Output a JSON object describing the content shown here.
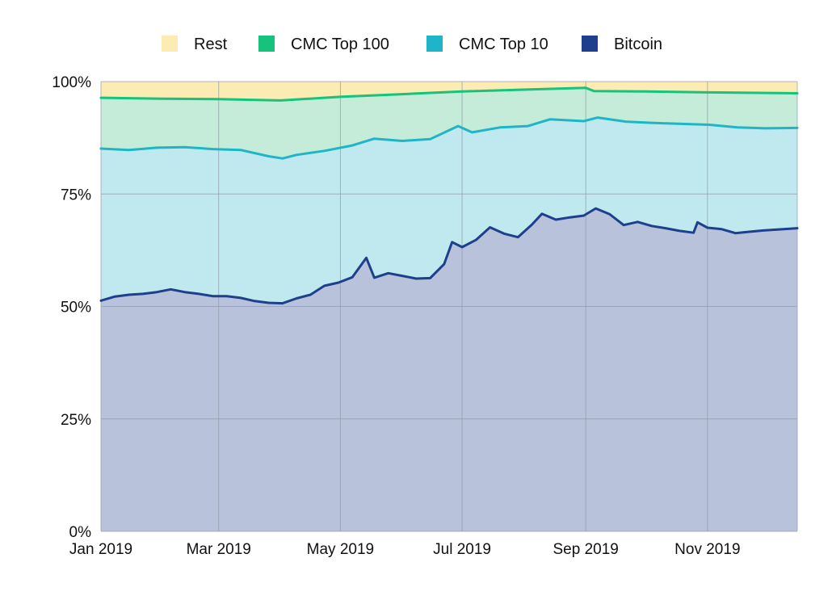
{
  "chart_data": {
    "type": "area",
    "stacked": true,
    "x_axis": {
      "tick_labels": [
        "Jan 2019",
        "Mar 2019",
        "May 2019",
        "Jul 2019",
        "Sep 2019",
        "Nov 2019"
      ],
      "tick_dates": [
        "2019-01-01",
        "2019-03-01",
        "2019-05-01",
        "2019-07-01",
        "2019-09-01",
        "2019-11-01"
      ],
      "range": [
        "2019-01-01",
        "2019-12-16"
      ]
    },
    "y_axis": {
      "tick_labels": [
        "0%",
        "25%",
        "50%",
        "75%",
        "100%"
      ],
      "tick_values": [
        0,
        25,
        50,
        75,
        100
      ],
      "range": [
        0,
        100
      ],
      "unit": "%"
    },
    "grid": true,
    "legend_position": "top",
    "series": [
      {
        "name": "Bitcoin",
        "fill_color": "#b8c3db",
        "line_color": "#1d3f8c",
        "points": [
          [
            "2019-01-01",
            51.3
          ],
          [
            "2019-01-08",
            52.2
          ],
          [
            "2019-01-15",
            52.6
          ],
          [
            "2019-01-22",
            52.8
          ],
          [
            "2019-01-29",
            53.2
          ],
          [
            "2019-02-05",
            53.8
          ],
          [
            "2019-02-12",
            53.2
          ],
          [
            "2019-02-19",
            52.8
          ],
          [
            "2019-02-26",
            52.3
          ],
          [
            "2019-03-05",
            52.3
          ],
          [
            "2019-03-12",
            51.9
          ],
          [
            "2019-03-19",
            51.2
          ],
          [
            "2019-03-26",
            50.8
          ],
          [
            "2019-04-02",
            50.7
          ],
          [
            "2019-04-09",
            51.8
          ],
          [
            "2019-04-16",
            52.6
          ],
          [
            "2019-04-23",
            54.6
          ],
          [
            "2019-04-30",
            55.3
          ],
          [
            "2019-05-07",
            56.5
          ],
          [
            "2019-05-14",
            60.8
          ],
          [
            "2019-05-18",
            56.4
          ],
          [
            "2019-05-25",
            57.4
          ],
          [
            "2019-06-01",
            56.8
          ],
          [
            "2019-06-08",
            56.2
          ],
          [
            "2019-06-15",
            56.3
          ],
          [
            "2019-06-22",
            59.4
          ],
          [
            "2019-06-26",
            64.3
          ],
          [
            "2019-07-01",
            63.2
          ],
          [
            "2019-07-08",
            64.8
          ],
          [
            "2019-07-15",
            67.6
          ],
          [
            "2019-07-22",
            66.2
          ],
          [
            "2019-07-29",
            65.4
          ],
          [
            "2019-08-05",
            68.2
          ],
          [
            "2019-08-10",
            70.6
          ],
          [
            "2019-08-17",
            69.3
          ],
          [
            "2019-08-24",
            69.8
          ],
          [
            "2019-08-31",
            70.2
          ],
          [
            "2019-09-06",
            71.8
          ],
          [
            "2019-09-13",
            70.5
          ],
          [
            "2019-09-20",
            68.1
          ],
          [
            "2019-09-27",
            68.8
          ],
          [
            "2019-10-04",
            67.9
          ],
          [
            "2019-10-11",
            67.4
          ],
          [
            "2019-10-18",
            66.8
          ],
          [
            "2019-10-25",
            66.4
          ],
          [
            "2019-10-27",
            68.7
          ],
          [
            "2019-11-01",
            67.5
          ],
          [
            "2019-11-08",
            67.2
          ],
          [
            "2019-11-15",
            66.3
          ],
          [
            "2019-11-22",
            66.6
          ],
          [
            "2019-11-29",
            66.9
          ],
          [
            "2019-12-06",
            67.1
          ],
          [
            "2019-12-16",
            67.4
          ]
        ]
      },
      {
        "name": "CMC Top 10",
        "fill_color": "#bfe9ef",
        "line_color": "#1fb5c8",
        "points": [
          [
            "2019-01-01",
            85.1
          ],
          [
            "2019-01-15",
            84.8
          ],
          [
            "2019-01-29",
            85.3
          ],
          [
            "2019-02-12",
            85.4
          ],
          [
            "2019-02-26",
            85.0
          ],
          [
            "2019-03-12",
            84.8
          ],
          [
            "2019-03-26",
            83.4
          ],
          [
            "2019-04-02",
            82.9
          ],
          [
            "2019-04-09",
            83.7
          ],
          [
            "2019-04-23",
            84.6
          ],
          [
            "2019-05-07",
            85.8
          ],
          [
            "2019-05-18",
            87.3
          ],
          [
            "2019-06-01",
            86.8
          ],
          [
            "2019-06-15",
            87.2
          ],
          [
            "2019-06-29",
            90.1
          ],
          [
            "2019-07-06",
            88.7
          ],
          [
            "2019-07-20",
            89.8
          ],
          [
            "2019-08-03",
            90.1
          ],
          [
            "2019-08-14",
            91.6
          ],
          [
            "2019-08-31",
            91.2
          ],
          [
            "2019-09-07",
            92.0
          ],
          [
            "2019-09-21",
            91.1
          ],
          [
            "2019-10-05",
            90.8
          ],
          [
            "2019-10-19",
            90.6
          ],
          [
            "2019-11-02",
            90.4
          ],
          [
            "2019-11-16",
            89.8
          ],
          [
            "2019-11-30",
            89.6
          ],
          [
            "2019-12-16",
            89.7
          ]
        ]
      },
      {
        "name": "CMC Top 100",
        "fill_color": "#c4ecd8",
        "line_color": "#16c27c",
        "points": [
          [
            "2019-01-01",
            96.4
          ],
          [
            "2019-02-01",
            96.2
          ],
          [
            "2019-03-01",
            96.1
          ],
          [
            "2019-04-01",
            95.8
          ],
          [
            "2019-05-01",
            96.6
          ],
          [
            "2019-06-01",
            97.2
          ],
          [
            "2019-07-01",
            97.8
          ],
          [
            "2019-08-01",
            98.2
          ],
          [
            "2019-09-01",
            98.6
          ],
          [
            "2019-09-05",
            97.9
          ],
          [
            "2019-10-01",
            97.8
          ],
          [
            "2019-11-01",
            97.6
          ],
          [
            "2019-12-16",
            97.4
          ]
        ]
      },
      {
        "name": "Rest",
        "fill_color": "#fcebb2",
        "line_color": "#fcebb2",
        "points": [
          [
            "2019-01-01",
            100
          ],
          [
            "2019-12-16",
            100
          ]
        ]
      }
    ]
  }
}
